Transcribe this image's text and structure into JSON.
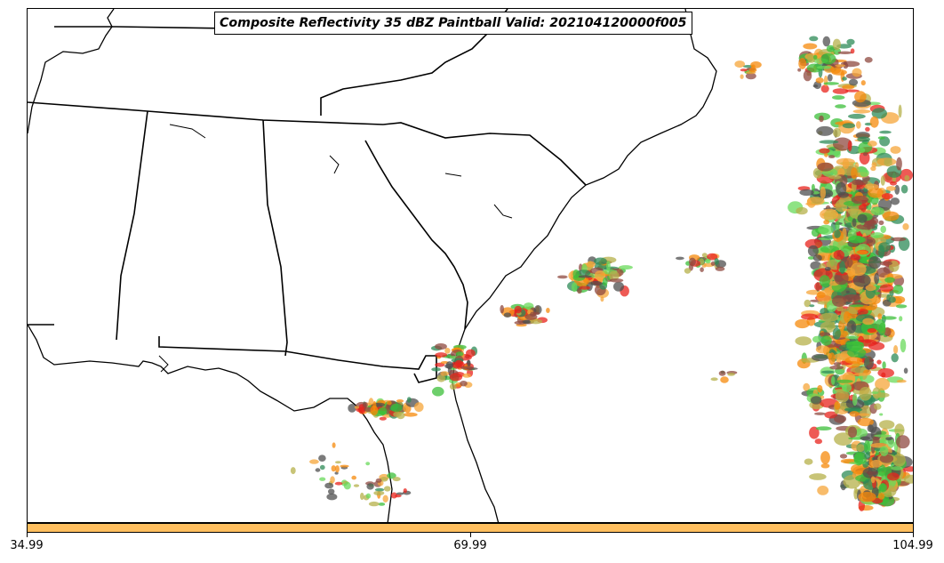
{
  "title": "Composite Reflectivity 35 dBZ Paintball Valid: 202104120000f005",
  "colorbar": {
    "color": "#ffbf5f",
    "ticks": [
      34.99,
      69.99,
      104.99
    ],
    "tick_labels": [
      "34.99",
      "69.99",
      "104.99"
    ]
  },
  "paintball_colors": [
    "#e8231c",
    "#f58a0b",
    "#f5a63a",
    "#3cbf3a",
    "#6ad95b",
    "#b5b04a",
    "#8f4a40",
    "#4f4f4f",
    "#2e8b57"
  ],
  "map_region": "Southeastern United States and western Atlantic",
  "map_features": [
    "coastline",
    "state-borders"
  ]
}
